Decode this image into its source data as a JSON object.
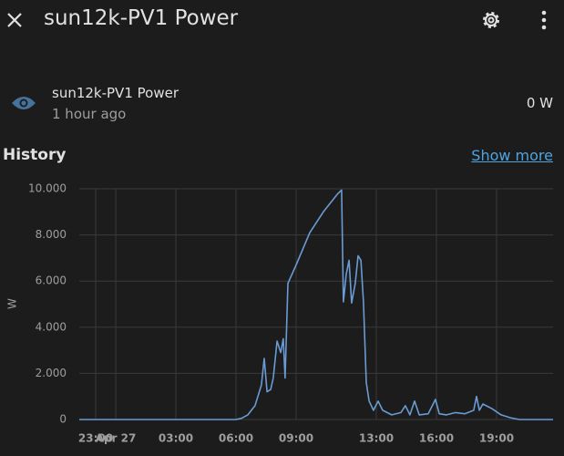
{
  "header": {
    "title": "sun12k-PV1 Power"
  },
  "entity": {
    "name": "sun12k-PV1 Power",
    "last_changed": "1 hour ago",
    "state": "0 W"
  },
  "history": {
    "title": "History",
    "link": "Show more"
  },
  "chart_data": {
    "type": "line",
    "ylabel": "W",
    "color": "#6a9bd3",
    "grid": true,
    "x": [
      -1.82,
      6.0,
      6.27,
      6.59,
      6.95,
      7.27,
      7.41,
      7.55,
      7.73,
      7.86,
      8.05,
      8.23,
      8.36,
      8.45,
      8.59,
      9.0,
      9.68,
      10.36,
      11.05,
      11.27,
      11.36,
      11.5,
      11.64,
      11.77,
      11.95,
      12.09,
      12.23,
      12.36,
      12.5,
      12.64,
      12.86,
      13.09,
      13.32,
      13.77,
      14.23,
      14.45,
      14.68,
      14.91,
      15.14,
      15.59,
      15.95,
      16.14,
      16.5,
      16.95,
      17.41,
      17.86,
      18.0,
      18.14,
      18.32,
      18.77,
      19.23,
      19.68,
      20.14,
      21.82
    ],
    "values": [
      0,
      0,
      50,
      200,
      600,
      1500,
      2650,
      1200,
      1300,
      1800,
      3400,
      2900,
      3500,
      1800,
      5900,
      6700,
      8100,
      9000,
      9760,
      9950,
      5100,
      6300,
      6900,
      5050,
      5900,
      7100,
      6900,
      5100,
      1600,
      800,
      400,
      800,
      400,
      200,
      300,
      600,
      200,
      800,
      200,
      250,
      870,
      250,
      200,
      300,
      250,
      400,
      1000,
      400,
      670,
      470,
      200,
      80,
      0,
      0
    ],
    "xlim": [
      -1.82,
      21.82
    ],
    "xticks": [
      {
        "value": -1,
        "label": "23:00"
      },
      {
        "value": 0,
        "label": "Apr 27"
      },
      {
        "value": 3,
        "label": "03:00"
      },
      {
        "value": 6,
        "label": "06:00"
      },
      {
        "value": 9,
        "label": "09:00"
      },
      {
        "value": 13,
        "label": "13:00"
      },
      {
        "value": 16,
        "label": "16:00"
      },
      {
        "value": 19,
        "label": "19:00"
      }
    ],
    "ylim": [
      0,
      10000
    ],
    "yticks": [
      0,
      {
        "value": 2000,
        "label": "2.000"
      },
      {
        "value": 4000,
        "label": "4.000"
      },
      {
        "value": 6000,
        "label": "6.000"
      },
      {
        "value": 8000,
        "label": "8.000"
      },
      {
        "value": 10000,
        "label": "10.000"
      }
    ]
  }
}
